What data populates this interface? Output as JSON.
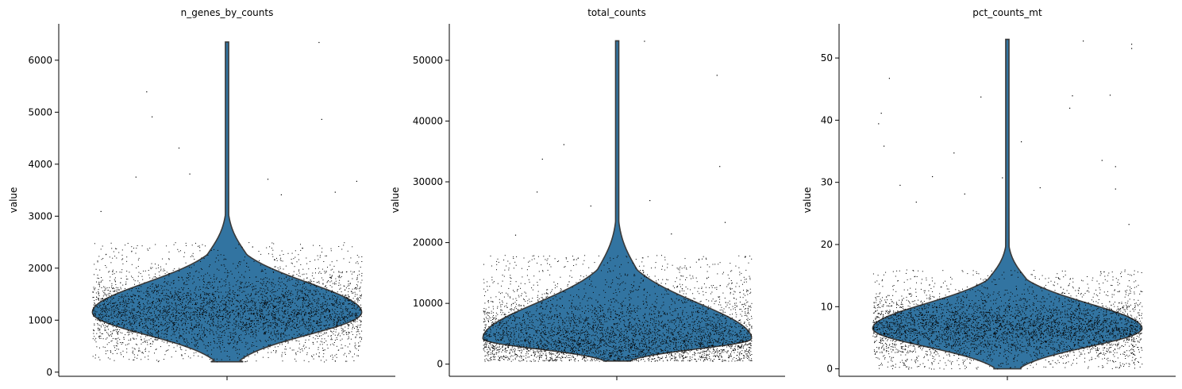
{
  "chart_data": [
    {
      "type": "violin",
      "title": "n_genes_by_counts",
      "ylabel": "value",
      "ylim": [
        -80,
        6700
      ],
      "yticks": [
        0,
        1000,
        2000,
        3000,
        4000,
        5000,
        6000
      ],
      "violin": {
        "min": 200,
        "max": 6350,
        "mode": 1150
      },
      "dense_range": [
        200,
        2500
      ],
      "outliers": [
        [
          0.2,
          5400
        ],
        [
          0.22,
          4920
        ],
        [
          0.32,
          4320
        ],
        [
          0.65,
          3720
        ],
        [
          0.7,
          3420
        ],
        [
          0.36,
          3820
        ],
        [
          0.84,
          6350
        ],
        [
          0.85,
          4870
        ],
        [
          0.03,
          3100
        ],
        [
          0.16,
          3760
        ],
        [
          0.98,
          3680
        ],
        [
          0.9,
          3470
        ]
      ],
      "colors": {
        "fill": "#3274a1",
        "edge": "#3a3a3a",
        "points": "#000000"
      }
    },
    {
      "type": "violin",
      "title": "total_counts",
      "ylabel": "value",
      "ylim": [
        -2000,
        56000
      ],
      "yticks": [
        0,
        10000,
        20000,
        30000,
        40000,
        50000
      ],
      "violin": {
        "min": 500,
        "max": 53200,
        "mode": 4200
      },
      "dense_range": [
        500,
        18000
      ],
      "outliers": [
        [
          0.6,
          53200
        ],
        [
          0.87,
          47600
        ],
        [
          0.3,
          36200
        ],
        [
          0.22,
          33800
        ],
        [
          0.2,
          28400
        ],
        [
          0.88,
          32600
        ],
        [
          0.9,
          23400
        ],
        [
          0.12,
          21300
        ],
        [
          0.62,
          27000
        ],
        [
          0.4,
          26100
        ],
        [
          0.7,
          21500
        ]
      ],
      "colors": {
        "fill": "#3274a1",
        "edge": "#3a3a3a",
        "points": "#000000"
      }
    },
    {
      "type": "violin",
      "title": "pct_counts_mt",
      "ylabel": "value",
      "ylim": [
        -1.2,
        55.5
      ],
      "yticks": [
        0,
        10,
        20,
        30,
        40,
        50
      ],
      "violin": {
        "min": 0,
        "max": 53,
        "mode": 6.5
      },
      "dense_range": [
        0,
        16
      ],
      "outliers": [
        [
          0.78,
          52.8
        ],
        [
          0.96,
          52.3
        ],
        [
          0.96,
          51.6
        ],
        [
          0.06,
          46.8
        ],
        [
          0.03,
          41.2
        ],
        [
          0.02,
          39.5
        ],
        [
          0.04,
          35.9
        ],
        [
          0.88,
          44.1
        ],
        [
          0.74,
          44.0
        ],
        [
          0.73,
          42.0
        ],
        [
          0.4,
          43.8
        ],
        [
          0.3,
          34.8
        ],
        [
          0.85,
          33.6
        ],
        [
          0.9,
          32.6
        ],
        [
          0.9,
          29.0
        ],
        [
          0.48,
          30.8
        ],
        [
          0.22,
          31.0
        ],
        [
          0.1,
          29.6
        ],
        [
          0.55,
          36.6
        ],
        [
          0.62,
          29.2
        ],
        [
          0.34,
          28.2
        ],
        [
          0.95,
          23.3
        ],
        [
          0.16,
          26.9
        ]
      ],
      "colors": {
        "fill": "#3274a1",
        "edge": "#3a3a3a",
        "points": "#000000"
      }
    }
  ]
}
